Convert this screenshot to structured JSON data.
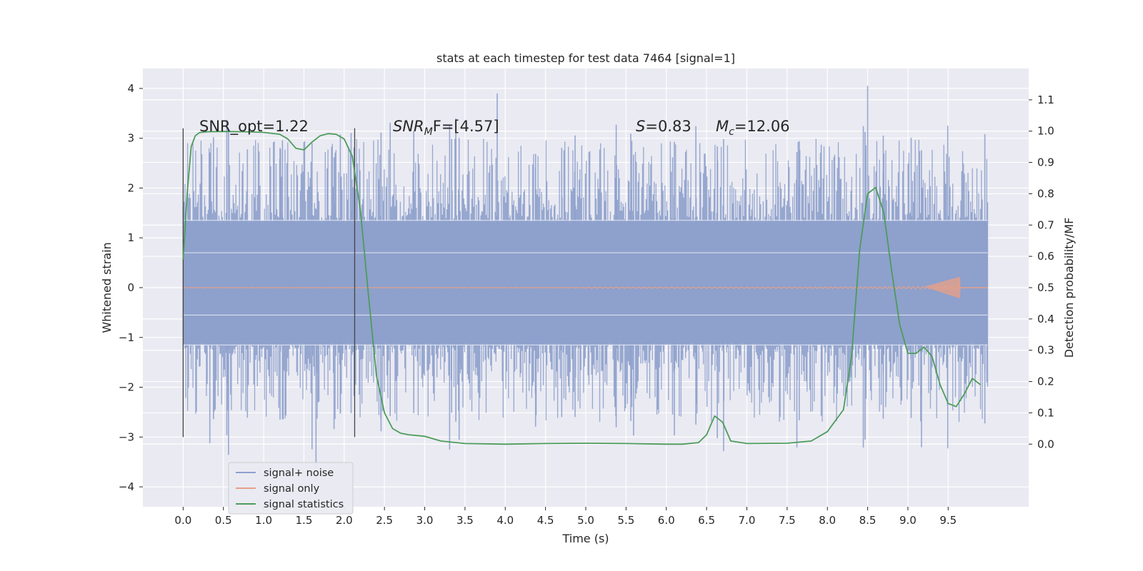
{
  "chart_data": {
    "type": "line",
    "title": "stats at each timestep for test data 7464 [signal=1]",
    "xlabel": "Time (s)",
    "ylabel_left": "Whitened strain",
    "ylabel_right": "Detection probability/MF",
    "xlim": [
      -0.5,
      10.5
    ],
    "ylim_left": [
      -4.4,
      4.4
    ],
    "ylim_right": [
      -0.2,
      1.2
    ],
    "x_ticks": [
      "0.0",
      "0.5",
      "1.0",
      "1.5",
      "2.0",
      "2.5",
      "3.0",
      "3.5",
      "4.0",
      "4.5",
      "5.0",
      "5.5",
      "6.0",
      "6.5",
      "7.0",
      "7.5",
      "8.0",
      "8.5",
      "9.0",
      "9.5"
    ],
    "y_left_ticks": [
      "4",
      "3",
      "2",
      "1",
      "0",
      "−1",
      "−2",
      "−3",
      "−4"
    ],
    "y_right_ticks": [
      "1.1",
      "1.0",
      "0.9",
      "0.8",
      "0.7",
      "0.6",
      "0.5",
      "0.4",
      "0.3",
      "0.2",
      "0.1",
      "0.0"
    ],
    "grid": true,
    "legend_position": "lower-left",
    "annotations": {
      "snr_opt": "SNR_opt=1.22",
      "snr_mf_main": "SNR",
      "snr_mf_sub": "M",
      "snr_mf_rest": "F=[4.57]",
      "s_main": "S",
      "s_rest": "=0.83",
      "mc_main": "M",
      "mc_sub": "c",
      "mc_rest": "=12.06"
    },
    "vertical_markers": [
      0.0,
      2.13
    ],
    "series": [
      {
        "name": "signal+ noise",
        "color": "#8da0cb",
        "description_values": {
          "envelope_core": [
            -1.15,
            1.35
          ],
          "typical_peak_range": [
            -2.7,
            3.0
          ],
          "max_spike": 4.05,
          "min_spike": -3.9
        }
      },
      {
        "name": "signal only",
        "color": "#e5a089",
        "chirp_end": 9.65,
        "max_amplitude": 0.22
      },
      {
        "name": "signal statistics",
        "color": "#4c9c5a",
        "x": [
          0.0,
          0.05,
          0.1,
          0.15,
          0.2,
          0.3,
          0.5,
          0.8,
          1.0,
          1.2,
          1.3,
          1.4,
          1.5,
          1.6,
          1.7,
          1.8,
          1.9,
          2.0,
          2.1,
          2.2,
          2.3,
          2.4,
          2.5,
          2.6,
          2.7,
          2.8,
          3.0,
          3.2,
          3.5,
          4.0,
          4.5,
          5.0,
          5.5,
          6.0,
          6.2,
          6.4,
          6.5,
          6.6,
          6.7,
          6.8,
          7.0,
          7.5,
          7.8,
          8.0,
          8.2,
          8.3,
          8.4,
          8.5,
          8.6,
          8.7,
          8.8,
          8.9,
          9.0,
          9.1,
          9.2,
          9.3,
          9.4,
          9.5,
          9.6,
          9.7,
          9.8,
          9.9
        ],
        "y": [
          0.59,
          0.8,
          0.95,
          0.985,
          0.995,
          0.998,
          0.999,
          0.998,
          0.996,
          0.99,
          0.975,
          0.945,
          0.94,
          0.965,
          0.985,
          0.992,
          0.99,
          0.975,
          0.92,
          0.75,
          0.48,
          0.22,
          0.1,
          0.05,
          0.035,
          0.03,
          0.025,
          0.01,
          0.002,
          0.0,
          0.002,
          0.003,
          0.002,
          0.0,
          0.0,
          0.005,
          0.03,
          0.09,
          0.07,
          0.01,
          0.002,
          0.003,
          0.01,
          0.04,
          0.11,
          0.28,
          0.62,
          0.8,
          0.82,
          0.74,
          0.55,
          0.38,
          0.29,
          0.29,
          0.31,
          0.28,
          0.19,
          0.13,
          0.12,
          0.16,
          0.21,
          0.19
        ]
      }
    ]
  }
}
